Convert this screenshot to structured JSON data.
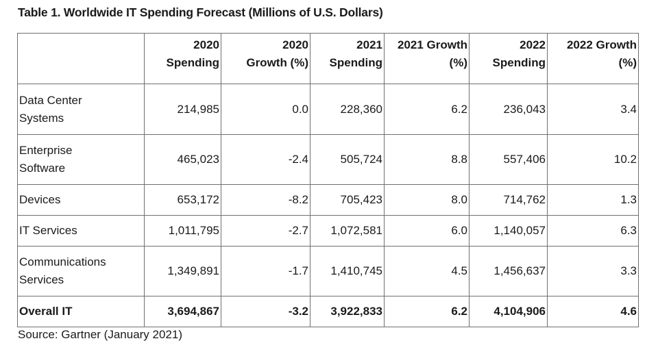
{
  "title": "Table 1. Worldwide IT Spending Forecast (Millions of U.S. Dollars)",
  "columns": [
    {
      "line1": "2020",
      "line2": "Spending"
    },
    {
      "line1": "2020",
      "line2": "Growth (%)"
    },
    {
      "line1": "2021",
      "line2": "Spending"
    },
    {
      "line1": "2021 Growth",
      "line2": "(%)"
    },
    {
      "line1": "2022",
      "line2": "Spending"
    },
    {
      "line1": "2022 Growth",
      "line2": "(%)"
    }
  ],
  "rows": [
    {
      "label_line1": "Data Center",
      "label_line2": "Systems",
      "values": [
        "214,985",
        "0.0",
        "228,360",
        "6.2",
        "236,043",
        "3.4"
      ]
    },
    {
      "label_line1": "Enterprise",
      "label_line2": "Software",
      "values": [
        "465,023",
        "-2.4",
        "505,724",
        "8.8",
        "557,406",
        "10.2"
      ]
    },
    {
      "label_line1": "Devices",
      "label_line2": "",
      "values": [
        "653,172",
        "-8.2",
        "705,423",
        "8.0",
        "714,762",
        "1.3"
      ]
    },
    {
      "label_line1": "IT Services",
      "label_line2": "",
      "values": [
        "1,011,795",
        "-2.7",
        "1,072,581",
        "6.0",
        "1,140,057",
        "6.3"
      ]
    },
    {
      "label_line1": "Communications",
      "label_line2": "Services",
      "values": [
        "1,349,891",
        "-1.7",
        "1,410,745",
        "4.5",
        "1,456,637",
        "3.3"
      ]
    }
  ],
  "total": {
    "label": "Overall IT",
    "values": [
      "3,694,867",
      "-3.2",
      "3,922,833",
      "6.2",
      "4,104,906",
      "4.6"
    ]
  },
  "source": "Source: Gartner (January 2021)"
}
